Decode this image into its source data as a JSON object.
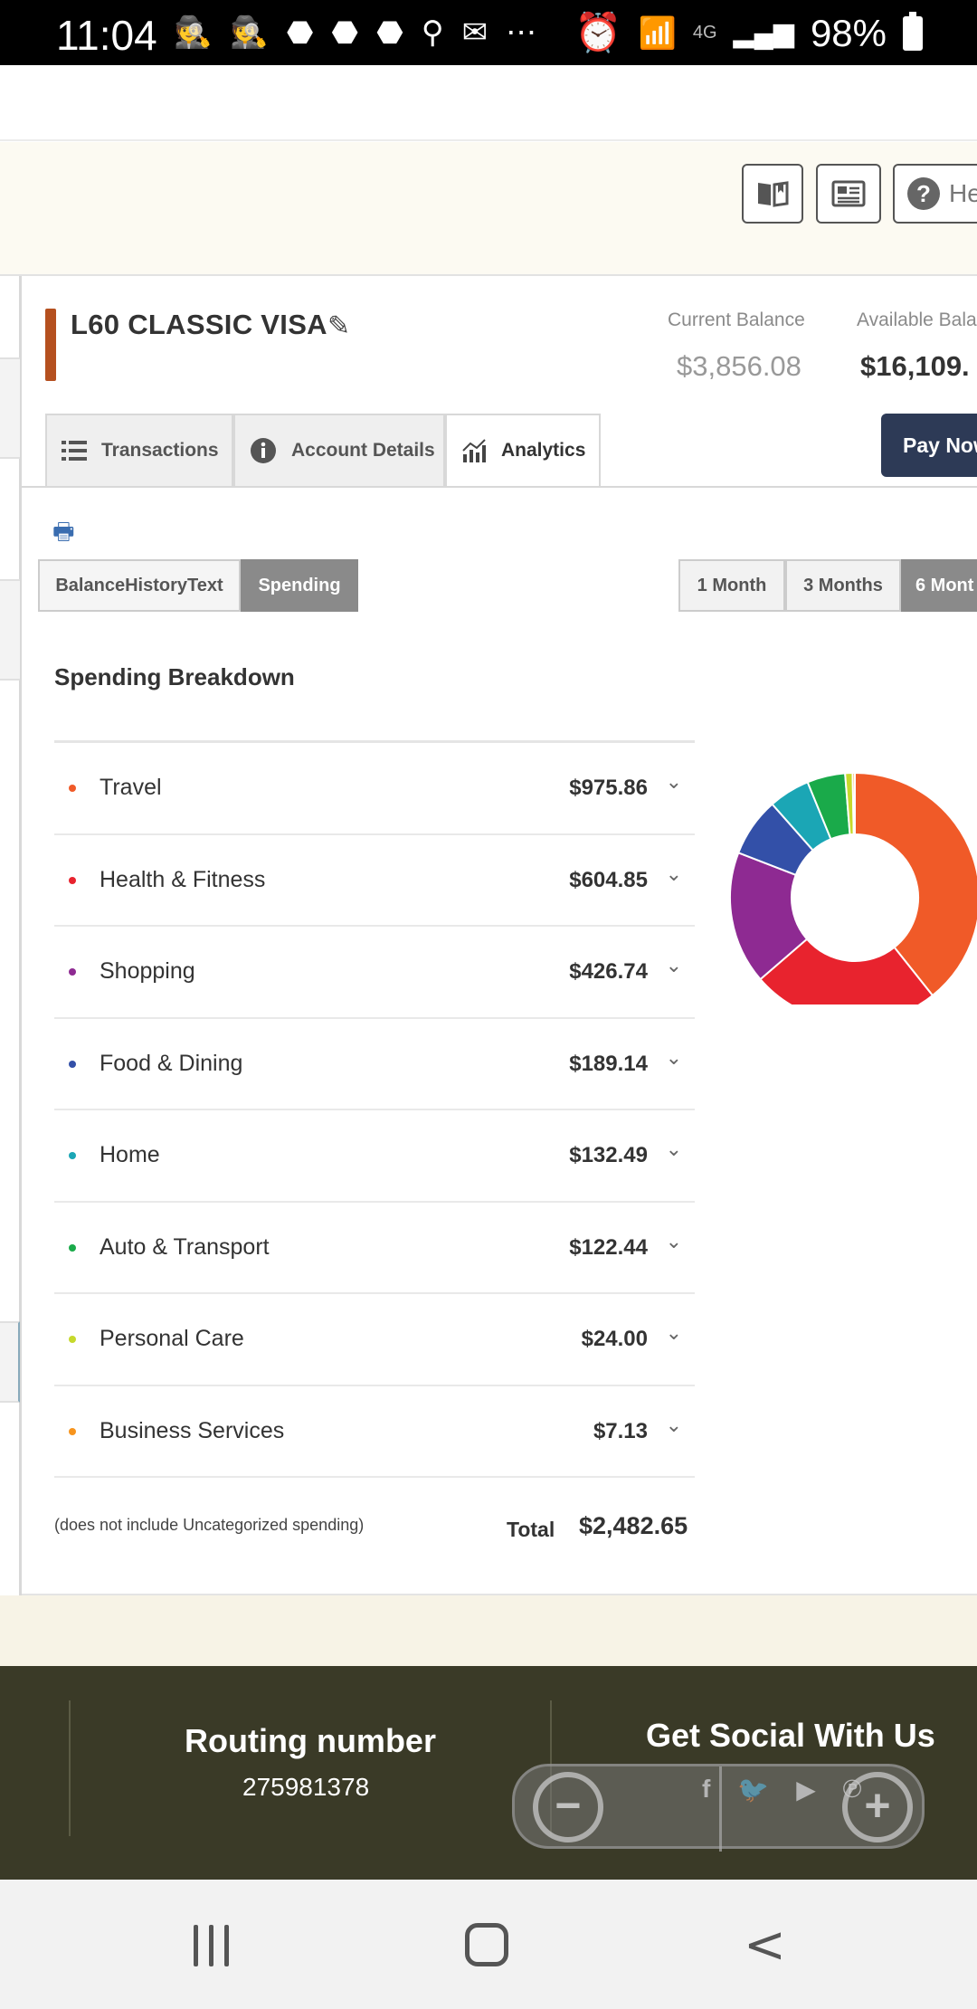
{
  "status_bar": {
    "time": "11:04",
    "battery": "98%",
    "network": "4G"
  },
  "toolbar": {
    "help_label": "He"
  },
  "account": {
    "name": "L60 CLASSIC VISA",
    "current_balance_label": "Current Balance",
    "current_balance": "$3,856.08",
    "available_balance_label": "Available Bala",
    "available_balance": "$16,109.",
    "accent_color": "#b5501f"
  },
  "tabs": [
    {
      "label": "Transactions",
      "icon": "list-icon"
    },
    {
      "label": "Account Details",
      "icon": "info-icon"
    },
    {
      "label": "Analytics",
      "icon": "chart-icon",
      "active": true
    }
  ],
  "pay_now_label": "Pay Now",
  "view_toggle": [
    {
      "label": "BalanceHistoryText",
      "active": false
    },
    {
      "label": "Spending",
      "active": true
    }
  ],
  "period_toggle": [
    {
      "label": "1 Month",
      "active": false
    },
    {
      "label": "3 Months",
      "active": false
    },
    {
      "label": "6 Mont",
      "active": true
    }
  ],
  "spending": {
    "title": "Spending Breakdown",
    "categories": [
      {
        "name": "Travel",
        "amount": "$975.86",
        "value": 975.86,
        "color": "#f05a28"
      },
      {
        "name": "Health & Fitness",
        "amount": "$604.85",
        "value": 604.85,
        "color": "#e8232e"
      },
      {
        "name": "Shopping",
        "amount": "$426.74",
        "value": 426.74,
        "color": "#8e2a92"
      },
      {
        "name": "Food & Dining",
        "amount": "$189.14",
        "value": 189.14,
        "color": "#3350a8"
      },
      {
        "name": "Home",
        "amount": "$132.49",
        "value": 132.49,
        "color": "#1ba6b5"
      },
      {
        "name": "Auto & Transport",
        "amount": "$122.44",
        "value": 122.44,
        "color": "#1aaa4a"
      },
      {
        "name": "Personal Care",
        "amount": "$24.00",
        "value": 24.0,
        "color": "#c6d92c"
      },
      {
        "name": "Business Services",
        "amount": "$7.13",
        "value": 7.13,
        "color": "#f7941d"
      }
    ],
    "note": "(does not include Uncategorized spending)",
    "total_label": "Total",
    "total": "$2,482.65"
  },
  "footer": {
    "routing_title": "Routing number",
    "routing_number": "275981378",
    "social_title": "Get Social With Us",
    "social_icons": [
      "facebook-icon",
      "twitter-icon",
      "youtube-icon",
      "pinterest-icon"
    ]
  }
}
